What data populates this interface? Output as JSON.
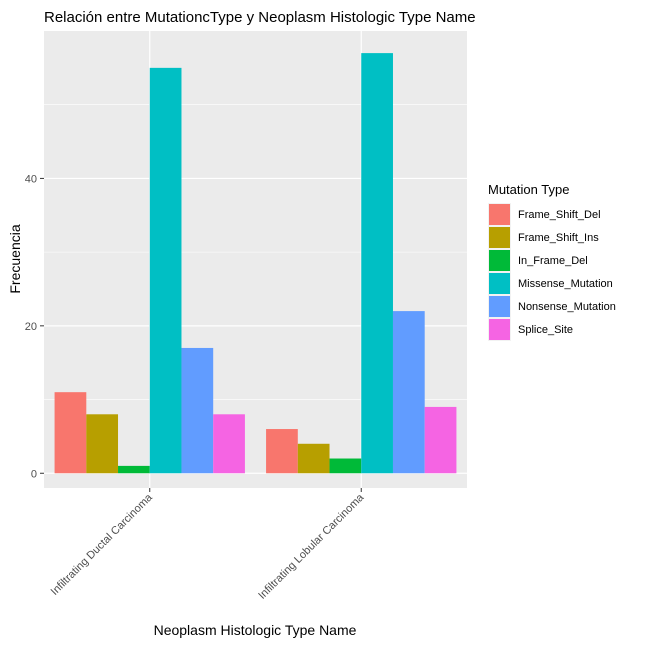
{
  "chart_data": {
    "type": "bar",
    "title": "Relación entre MutationcType y Neoplasm Histologic Type Name",
    "xlabel": "Neoplasm Histologic Type Name",
    "ylabel": "Frecuencia",
    "ylim": [
      -2,
      60
    ],
    "yticks": [
      0,
      20,
      40
    ],
    "grid": true,
    "legend_position": "right",
    "legend_title": "Mutation Type",
    "categories": [
      "Infiltrating Ductal Carcinoma",
      "Infiltrating Lobular Carcinoma"
    ],
    "series": [
      {
        "name": "Frame_Shift_Del",
        "color": "#F8766D",
        "values": [
          11,
          6
        ]
      },
      {
        "name": "Frame_Shift_Ins",
        "color": "#B79F00",
        "values": [
          8,
          4
        ]
      },
      {
        "name": "In_Frame_Del",
        "color": "#00BA38",
        "values": [
          1,
          2
        ]
      },
      {
        "name": "Missense_Mutation",
        "color": "#00BFC4",
        "values": [
          55,
          57
        ]
      },
      {
        "name": "Nonsense_Mutation",
        "color": "#619CFF",
        "values": [
          17,
          22
        ]
      },
      {
        "name": "Splice_Site",
        "color": "#F564E3",
        "values": [
          8,
          9
        ]
      }
    ]
  }
}
